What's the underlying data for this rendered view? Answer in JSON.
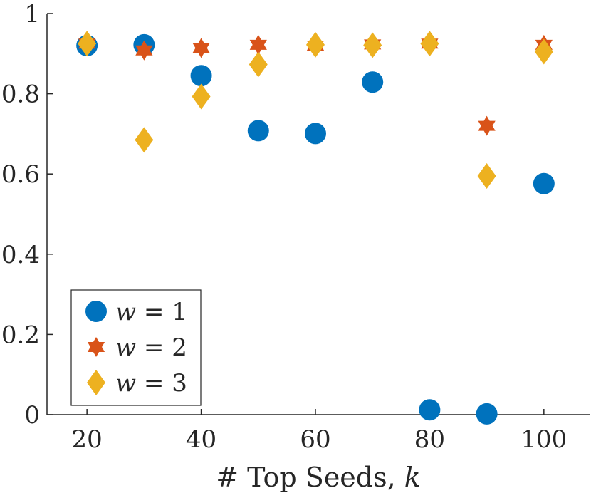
{
  "chart_data": {
    "type": "scatter",
    "title": "",
    "xlabel": "# Top Seeds, ",
    "xlabel_var": "k",
    "ylabel": "",
    "xlim": [
      13,
      108
    ],
    "ylim": [
      0,
      1
    ],
    "xticks": [
      20,
      40,
      60,
      80,
      100
    ],
    "yticks": [
      0,
      0.2,
      0.4,
      0.6,
      0.8,
      1
    ],
    "ytick_labels": [
      "0",
      "0.2",
      "0.4",
      "0.6",
      "0.8",
      "1"
    ],
    "grid": false,
    "legend_position": "bottom-left",
    "series": [
      {
        "name": "w = 1",
        "legend_var": "w",
        "legend_rest": " = 1",
        "marker": "circle",
        "color": "#0072BD",
        "x": [
          20,
          30,
          40,
          50,
          60,
          70,
          80,
          90,
          100
        ],
        "y": [
          0.92,
          0.922,
          0.845,
          0.708,
          0.701,
          0.829,
          0.012,
          0.002,
          0.576
        ]
      },
      {
        "name": "w = 2",
        "legend_var": "w",
        "legend_rest": " = 2",
        "marker": "hexagram",
        "color": "#D95319",
        "x": [
          20,
          30,
          40,
          50,
          60,
          70,
          80,
          90,
          100
        ],
        "y": [
          0.925,
          0.908,
          0.914,
          0.922,
          0.92,
          0.923,
          0.925,
          0.72,
          0.922
        ]
      },
      {
        "name": "w = 3",
        "legend_var": "w",
        "legend_rest": " = 3",
        "marker": "diamond",
        "color": "#EDB120",
        "x": [
          20,
          30,
          40,
          50,
          60,
          70,
          80,
          90,
          100
        ],
        "y": [
          0.925,
          0.685,
          0.793,
          0.873,
          0.922,
          0.921,
          0.925,
          0.595,
          0.905
        ]
      }
    ]
  }
}
